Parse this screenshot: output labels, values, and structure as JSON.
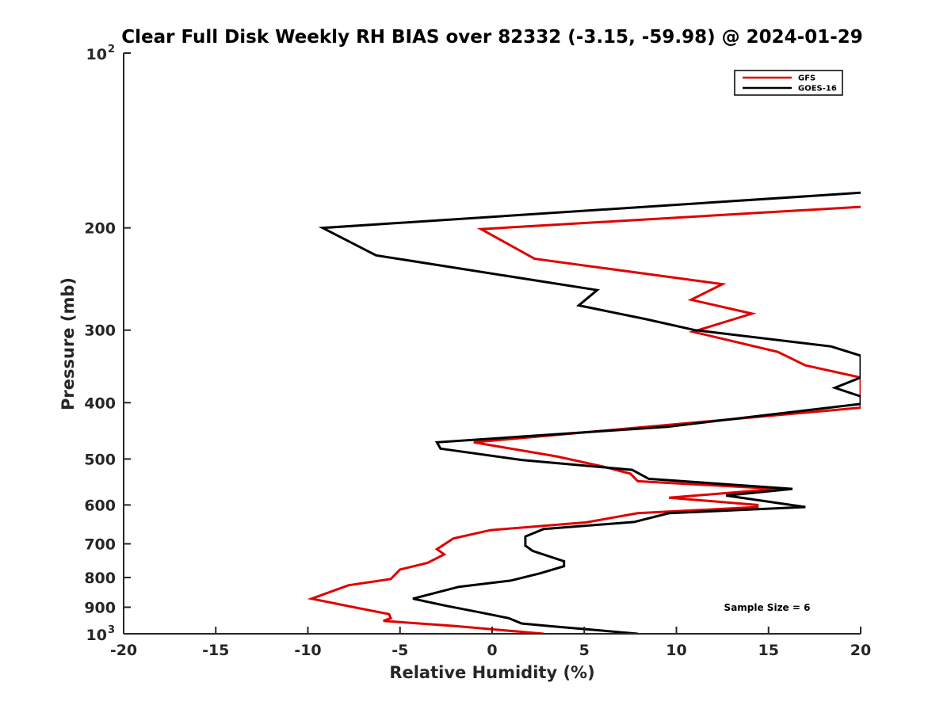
{
  "chart_data": {
    "type": "line",
    "title": "Clear Full Disk Weekly RH BIAS over 82332 (-3.15, -59.98) @ 2024-01-29",
    "xlabel": "Relative Humidity (%)",
    "ylabel": "Pressure (mb)",
    "xlim": [
      -20,
      20
    ],
    "ylim": [
      100,
      1000
    ],
    "y_scale": "log",
    "y_reversed": true,
    "grid": false,
    "legend_position": "top-right",
    "x_ticks": [
      "-20",
      "-15",
      "-10",
      "-5",
      "0",
      "5",
      "10",
      "15",
      "20"
    ],
    "y_ticks": [
      {
        "value": 200,
        "label": "200"
      },
      {
        "value": 300,
        "label": "300"
      },
      {
        "value": 400,
        "label": "400"
      },
      {
        "value": 500,
        "label": "500"
      },
      {
        "value": 600,
        "label": "600"
      },
      {
        "value": 700,
        "label": "700"
      },
      {
        "value": 800,
        "label": "800"
      },
      {
        "value": 900,
        "label": "900"
      }
    ],
    "y_tick_top": {
      "base": "10",
      "exp": "2"
    },
    "y_tick_bottom": {
      "base": "10",
      "exp": "3"
    },
    "annotation": "Sample Size = 6",
    "series": [
      {
        "name": "GFS",
        "color": "#e00000",
        "points": [
          [
            20,
            184
          ],
          [
            -0.6,
            201
          ],
          [
            2.3,
            226
          ],
          [
            12.5,
            250
          ],
          [
            10.8,
            266
          ],
          [
            14.1,
            281
          ],
          [
            10.9,
            302
          ],
          [
            15.5,
            327
          ],
          [
            17,
            345
          ],
          [
            20,
            362
          ],
          [
            20,
            408
          ],
          [
            -1.0,
            468
          ],
          [
            3.5,
            495
          ],
          [
            6.0,
            515
          ],
          [
            7.5,
            530
          ],
          [
            7.9,
            546
          ],
          [
            15.5,
            563
          ],
          [
            9.6,
            583
          ],
          [
            14.4,
            600
          ],
          [
            14.4,
            605
          ],
          [
            7.9,
            620
          ],
          [
            5.1,
            643
          ],
          [
            -0.1,
            663
          ],
          [
            -2.1,
            685
          ],
          [
            -3.0,
            715
          ],
          [
            -2.6,
            730
          ],
          [
            -3.5,
            755
          ],
          [
            -5.0,
            775
          ],
          [
            -5.5,
            805
          ],
          [
            -7.8,
            825
          ],
          [
            -9.8,
            870
          ],
          [
            -7.5,
            900
          ],
          [
            -5.6,
            925
          ],
          [
            -5.5,
            940
          ],
          [
            -5.9,
            950
          ],
          [
            -2.0,
            970
          ],
          [
            2.8,
            1000
          ]
        ]
      },
      {
        "name": "GOES-16",
        "color": "#000000",
        "points": [
          [
            20,
            174
          ],
          [
            -9.2,
            200
          ],
          [
            -6.3,
            223
          ],
          [
            5.7,
            256
          ],
          [
            4.7,
            272
          ],
          [
            8.3,
            287
          ],
          [
            11.0,
            300
          ],
          [
            18.4,
            320
          ],
          [
            20,
            332
          ],
          [
            20,
            362
          ],
          [
            18.6,
            377
          ],
          [
            20,
            390
          ],
          [
            20,
            402
          ],
          [
            9.5,
            440
          ],
          [
            -3.0,
            468
          ],
          [
            -2.8,
            480
          ],
          [
            1.6,
            502
          ],
          [
            7.6,
            522
          ],
          [
            8.5,
            541
          ],
          [
            16.3,
            563
          ],
          [
            12.7,
            578
          ],
          [
            17.0,
            605
          ],
          [
            9.6,
            620
          ],
          [
            7.7,
            642
          ],
          [
            2.8,
            660
          ],
          [
            1.8,
            680
          ],
          [
            1.8,
            705
          ],
          [
            2.2,
            720
          ],
          [
            3.9,
            750
          ],
          [
            3.9,
            765
          ],
          [
            2.6,
            787
          ],
          [
            1.0,
            810
          ],
          [
            -1.8,
            830
          ],
          [
            -4.3,
            870
          ],
          [
            -2.5,
            895
          ],
          [
            -0.7,
            918
          ],
          [
            0.9,
            940
          ],
          [
            1.6,
            960
          ],
          [
            3.1,
            970
          ],
          [
            5.1,
            982
          ],
          [
            7.9,
            1000
          ]
        ]
      }
    ]
  }
}
